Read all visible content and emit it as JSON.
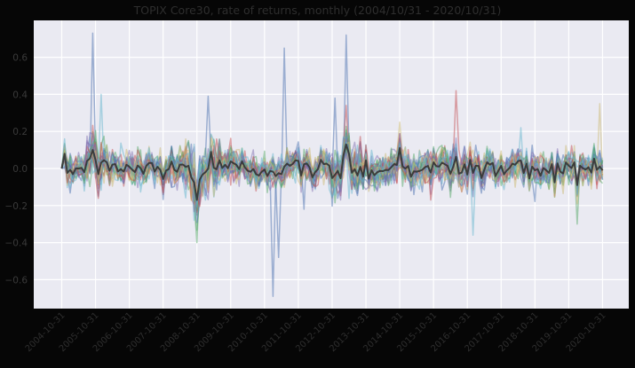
{
  "chart_data": {
    "type": "line",
    "title": "TOPIX Core30, rate of returns, monthly (2004/10/31 - 2020/10/31)",
    "xlabel": "",
    "ylabel": "",
    "ylim": [
      -0.75,
      0.79
    ],
    "grid": true,
    "legend": "none",
    "x_ticks": [
      "2004-10-31",
      "2005-10-31",
      "2006-10-31",
      "2007-10-31",
      "2008-10-31",
      "2009-10-31",
      "2010-10-31",
      "2011-10-31",
      "2012-10-31",
      "2013-10-31",
      "2014-10-31",
      "2015-10-31",
      "2016-10-31",
      "2017-10-31",
      "2018-10-31",
      "2019-10-31",
      "2020-10-31"
    ],
    "y_ticks": [
      0.6,
      0.4,
      0.2,
      0.0,
      -0.2,
      -0.4,
      -0.6
    ],
    "y_tick_labels": [
      "0.6",
      "0.4",
      "0.2",
      "0.0",
      "−0.2",
      "−0.4",
      "−0.6"
    ],
    "n_months": 193,
    "series_count": 30,
    "series_note": "30 constituent stocks plotted as semi-transparent lines plus one dark mean line",
    "series_colors": [
      "#4c72b0",
      "#55a868",
      "#c44e52",
      "#8172b2",
      "#ccb974",
      "#64b5cd"
    ],
    "mean_color": "#333333",
    "notable_points": [
      {
        "date_index": 11,
        "value": 0.73,
        "color": "#4c72b0"
      },
      {
        "date_index": 14,
        "value": 0.4,
        "color": "#64b5cd"
      },
      {
        "date_index": 48,
        "value": -0.4,
        "color": "#55a868"
      },
      {
        "date_index": 47,
        "value": -0.28,
        "color": "#64b5cd"
      },
      {
        "date_index": 52,
        "value": 0.39,
        "color": "#4c72b0"
      },
      {
        "date_index": 75,
        "value": -0.69,
        "color": "#4c72b0"
      },
      {
        "date_index": 77,
        "value": -0.48,
        "color": "#4c72b0"
      },
      {
        "date_index": 79,
        "value": 0.65,
        "color": "#4c72b0"
      },
      {
        "date_index": 86,
        "value": -0.22,
        "color": "#4c72b0"
      },
      {
        "date_index": 97,
        "value": 0.38,
        "color": "#4c72b0"
      },
      {
        "date_index": 101,
        "value": 0.72,
        "color": "#4c72b0"
      },
      {
        "date_index": 101,
        "value": 0.34,
        "color": "#c44e52"
      },
      {
        "date_index": 120,
        "value": 0.25,
        "color": "#ccb974"
      },
      {
        "date_index": 140,
        "value": 0.42,
        "color": "#c44e52"
      },
      {
        "date_index": 146,
        "value": -0.36,
        "color": "#64b5cd"
      },
      {
        "date_index": 163,
        "value": 0.22,
        "color": "#64b5cd"
      },
      {
        "date_index": 183,
        "value": -0.3,
        "color": "#55a868"
      },
      {
        "date_index": 191,
        "value": 0.35,
        "color": "#ccb974"
      }
    ],
    "mean_series_highlights": [
      {
        "date_index": 0,
        "value": 0.0
      },
      {
        "date_index": 11,
        "value": 0.1
      },
      {
        "date_index": 48,
        "value": -0.17
      },
      {
        "date_index": 53,
        "value": 0.09
      },
      {
        "date_index": 101,
        "value": 0.13
      },
      {
        "date_index": 120,
        "value": 0.11
      },
      {
        "date_index": 183,
        "value": -0.09
      },
      {
        "date_index": 192,
        "value": -0.01
      }
    ]
  },
  "page": {
    "title": "TOPIX Core30, rate of returns, monthly (2004/10/31 - 2020/10/31)"
  }
}
